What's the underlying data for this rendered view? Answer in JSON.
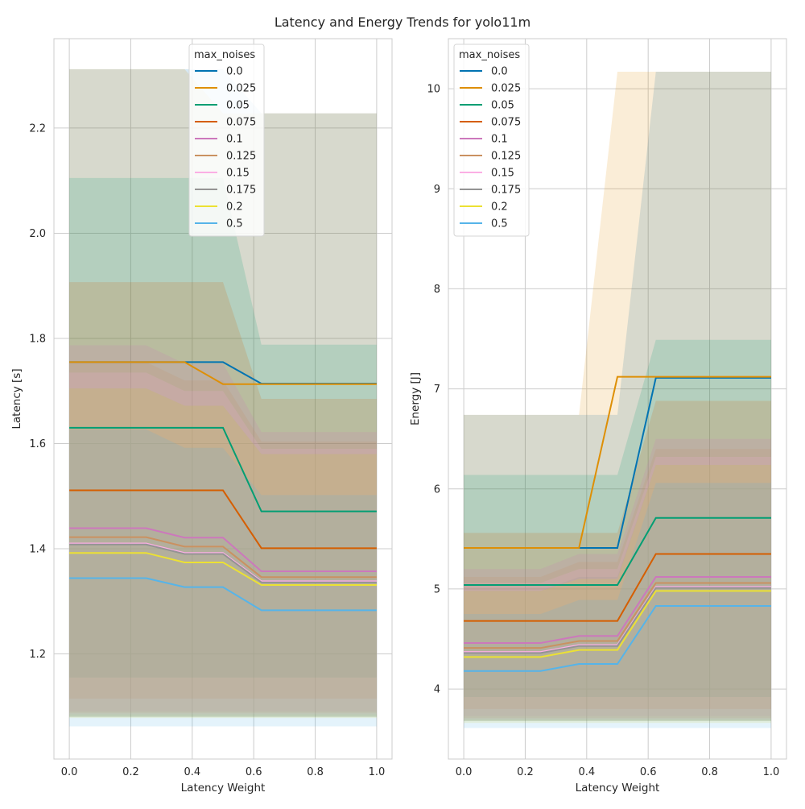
{
  "figure_title": "Latency and Energy Trends for yolo11m",
  "legend_title": "max_noises",
  "series_styles": [
    {
      "name": "0.0",
      "color": "#0173b2"
    },
    {
      "name": "0.025",
      "color": "#de8f05"
    },
    {
      "name": "0.05",
      "color": "#029e73"
    },
    {
      "name": "0.075",
      "color": "#d55e00"
    },
    {
      "name": "0.1",
      "color": "#cc78bc"
    },
    {
      "name": "0.125",
      "color": "#ca9161"
    },
    {
      "name": "0.15",
      "color": "#fbafe4"
    },
    {
      "name": "0.175",
      "color": "#949494"
    },
    {
      "name": "0.2",
      "color": "#ece133"
    },
    {
      "name": "0.5",
      "color": "#56b4e9"
    }
  ],
  "chart_data": [
    {
      "type": "line",
      "title": "",
      "xlabel": "Latency Weight",
      "ylabel": "Latency [s]",
      "xlim": [
        -0.05,
        1.05
      ],
      "ylim": [
        1.0,
        2.37
      ],
      "xticks": [
        "0.0",
        "0.2",
        "0.4",
        "0.6",
        "0.8",
        "1.0"
      ],
      "yticks": [
        "1.2",
        "1.4",
        "1.6",
        "1.8",
        "2.0",
        "2.2"
      ],
      "grid": true,
      "legend": "upper center",
      "x": [
        0.0,
        0.125,
        0.25,
        0.375,
        0.5,
        0.625,
        0.75,
        0.875,
        1.0
      ],
      "series": [
        {
          "name": "0.0",
          "values": [
            1.755,
            1.755,
            1.755,
            1.755,
            1.755,
            1.714,
            1.714,
            1.714,
            1.714
          ],
          "lower": [
            1.08,
            1.08,
            1.08,
            1.08,
            1.08,
            1.08,
            1.08,
            1.08,
            1.08
          ],
          "upper": [
            2.312,
            2.312,
            2.312,
            2.312,
            2.312,
            2.228,
            2.228,
            2.228,
            2.228
          ]
        },
        {
          "name": "0.025",
          "values": [
            1.755,
            1.755,
            1.755,
            1.755,
            1.713,
            1.713,
            1.713,
            1.713,
            1.713
          ],
          "lower": [
            1.08,
            1.08,
            1.08,
            1.08,
            1.08,
            1.08,
            1.08,
            1.08,
            1.08
          ],
          "upper": [
            2.312,
            2.312,
            2.312,
            2.312,
            2.228,
            2.228,
            2.228,
            2.228,
            2.228
          ]
        },
        {
          "name": "0.05",
          "values": [
            1.63,
            1.63,
            1.63,
            1.63,
            1.63,
            1.471,
            1.471,
            1.471,
            1.471
          ],
          "lower": [
            1.155,
            1.155,
            1.155,
            1.155,
            1.155,
            1.155,
            1.155,
            1.155,
            1.155
          ],
          "upper": [
            2.105,
            2.105,
            2.105,
            2.105,
            2.105,
            1.788,
            1.788,
            1.788,
            1.788
          ]
        },
        {
          "name": "0.075",
          "values": [
            1.511,
            1.511,
            1.511,
            1.511,
            1.511,
            1.401,
            1.401,
            1.401,
            1.401
          ],
          "lower": [
            1.115,
            1.115,
            1.115,
            1.115,
            1.115,
            1.115,
            1.115,
            1.115,
            1.115
          ],
          "upper": [
            1.907,
            1.907,
            1.907,
            1.907,
            1.907,
            1.685,
            1.685,
            1.685,
            1.685
          ]
        },
        {
          "name": "0.1",
          "values": [
            1.439,
            1.439,
            1.439,
            1.421,
            1.421,
            1.357,
            1.357,
            1.357,
            1.357
          ],
          "lower": [
            1.09,
            1.09,
            1.09,
            1.09,
            1.09,
            1.09,
            1.09,
            1.09,
            1.09
          ],
          "upper": [
            1.787,
            1.787,
            1.787,
            1.752,
            1.752,
            1.622,
            1.622,
            1.622,
            1.622
          ]
        },
        {
          "name": "0.125",
          "values": [
            1.422,
            1.422,
            1.422,
            1.404,
            1.404,
            1.346,
            1.346,
            1.346,
            1.346
          ],
          "lower": [
            1.088,
            1.088,
            1.088,
            1.088,
            1.088,
            1.088,
            1.088,
            1.088,
            1.088
          ],
          "upper": [
            1.755,
            1.755,
            1.755,
            1.72,
            1.72,
            1.604,
            1.604,
            1.604,
            1.604
          ]
        },
        {
          "name": "0.15",
          "values": [
            1.41,
            1.41,
            1.41,
            1.392,
            1.392,
            1.338,
            1.338,
            1.338,
            1.338
          ],
          "lower": [
            1.085,
            1.085,
            1.085,
            1.085,
            1.085,
            1.085,
            1.085,
            1.085,
            1.085
          ],
          "upper": [
            1.735,
            1.735,
            1.735,
            1.7,
            1.7,
            1.59,
            1.59,
            1.59,
            1.59
          ]
        },
        {
          "name": "0.175",
          "values": [
            1.408,
            1.408,
            1.408,
            1.39,
            1.39,
            1.336,
            1.336,
            1.336,
            1.336
          ],
          "lower": [
            1.082,
            1.082,
            1.082,
            1.082,
            1.082,
            1.082,
            1.082,
            1.082,
            1.082
          ],
          "upper": [
            1.705,
            1.705,
            1.705,
            1.672,
            1.672,
            1.58,
            1.58,
            1.58,
            1.58
          ]
        },
        {
          "name": "0.2",
          "values": [
            1.392,
            1.392,
            1.392,
            1.374,
            1.374,
            1.331,
            1.331,
            1.331,
            1.331
          ],
          "lower": [
            1.078,
            1.078,
            1.078,
            1.078,
            1.078,
            1.078,
            1.078,
            1.078,
            1.078
          ],
          "upper": [
            1.705,
            1.705,
            1.705,
            1.672,
            1.672,
            1.58,
            1.58,
            1.58,
            1.58
          ]
        },
        {
          "name": "0.5",
          "values": [
            1.344,
            1.344,
            1.344,
            1.327,
            1.327,
            1.283,
            1.283,
            1.283,
            1.283
          ],
          "lower": [
            1.062,
            1.062,
            1.062,
            1.062,
            1.062,
            1.062,
            1.062,
            1.062,
            1.062
          ],
          "upper": [
            1.627,
            1.627,
            1.627,
            1.592,
            1.592,
            1.502,
            1.502,
            1.502,
            1.502
          ]
        }
      ]
    },
    {
      "type": "line",
      "title": "",
      "xlabel": "Latency Weight",
      "ylabel": "Energy [J]",
      "xlim": [
        -0.05,
        1.05
      ],
      "ylim": [
        3.3,
        10.5
      ],
      "xticks": [
        "0.0",
        "0.2",
        "0.4",
        "0.6",
        "0.8",
        "1.0"
      ],
      "yticks": [
        "4",
        "5",
        "6",
        "7",
        "8",
        "9",
        "10"
      ],
      "grid": true,
      "legend": "upper left",
      "x": [
        0.0,
        0.125,
        0.25,
        0.375,
        0.5,
        0.625,
        0.75,
        0.875,
        1.0
      ],
      "series": [
        {
          "name": "0.0",
          "values": [
            5.41,
            5.41,
            5.41,
            5.41,
            5.41,
            7.11,
            7.11,
            7.11,
            7.11
          ],
          "lower": [
            3.68,
            3.68,
            3.68,
            3.68,
            3.68,
            3.68,
            3.68,
            3.68,
            3.68
          ],
          "upper": [
            6.74,
            6.74,
            6.74,
            6.74,
            6.74,
            10.17,
            10.17,
            10.17,
            10.17
          ]
        },
        {
          "name": "0.025",
          "values": [
            5.41,
            5.41,
            5.41,
            5.41,
            7.12,
            7.12,
            7.12,
            7.12,
            7.12
          ],
          "lower": [
            3.68,
            3.68,
            3.68,
            3.68,
            3.68,
            3.68,
            3.68,
            3.68,
            3.68
          ],
          "upper": [
            6.74,
            6.74,
            6.74,
            6.74,
            10.17,
            10.17,
            10.17,
            10.17,
            10.17
          ]
        },
        {
          "name": "0.05",
          "values": [
            5.04,
            5.04,
            5.04,
            5.04,
            5.04,
            5.71,
            5.71,
            5.71,
            5.71
          ],
          "lower": [
            3.92,
            3.92,
            3.92,
            3.92,
            3.92,
            3.92,
            3.92,
            3.92,
            3.92
          ],
          "upper": [
            6.14,
            6.14,
            6.14,
            6.14,
            6.14,
            7.49,
            7.49,
            7.49,
            7.49
          ]
        },
        {
          "name": "0.075",
          "values": [
            4.68,
            4.68,
            4.68,
            4.68,
            4.68,
            5.35,
            5.35,
            5.35,
            5.35
          ],
          "lower": [
            3.8,
            3.8,
            3.8,
            3.8,
            3.8,
            3.8,
            3.8,
            3.8,
            3.8
          ],
          "upper": [
            5.56,
            5.56,
            5.56,
            5.56,
            5.56,
            6.88,
            6.88,
            6.88,
            6.88
          ]
        },
        {
          "name": "0.1",
          "values": [
            4.46,
            4.46,
            4.46,
            4.53,
            4.53,
            5.12,
            5.12,
            5.12,
            5.12
          ],
          "lower": [
            3.73,
            3.73,
            3.73,
            3.73,
            3.73,
            3.73,
            3.73,
            3.73,
            3.73
          ],
          "upper": [
            5.2,
            5.2,
            5.2,
            5.35,
            5.35,
            6.5,
            6.5,
            6.5,
            6.5
          ]
        },
        {
          "name": "0.125",
          "values": [
            4.41,
            4.41,
            4.41,
            4.48,
            4.48,
            5.06,
            5.06,
            5.06,
            5.06
          ],
          "lower": [
            3.71,
            3.71,
            3.71,
            3.71,
            3.71,
            3.71,
            3.71,
            3.71,
            3.71
          ],
          "upper": [
            5.12,
            5.12,
            5.12,
            5.27,
            5.27,
            6.4,
            6.4,
            6.4,
            6.4
          ]
        },
        {
          "name": "0.15",
          "values": [
            4.37,
            4.37,
            4.37,
            4.44,
            4.44,
            5.02,
            5.02,
            5.02,
            5.02
          ],
          "lower": [
            3.7,
            3.7,
            3.7,
            3.7,
            3.7,
            3.7,
            3.7,
            3.7,
            3.7
          ],
          "upper": [
            5.06,
            5.06,
            5.06,
            5.2,
            5.2,
            6.32,
            6.32,
            6.32,
            6.32
          ]
        },
        {
          "name": "0.175",
          "values": [
            4.36,
            4.36,
            4.36,
            4.43,
            4.43,
            5.01,
            5.01,
            5.01,
            5.01
          ],
          "lower": [
            3.69,
            3.69,
            3.69,
            3.69,
            3.69,
            3.69,
            3.69,
            3.69,
            3.69
          ],
          "upper": [
            4.98,
            4.98,
            4.98,
            5.12,
            5.12,
            6.24,
            6.24,
            6.24,
            6.24
          ]
        },
        {
          "name": "0.2",
          "values": [
            4.32,
            4.32,
            4.32,
            4.39,
            4.39,
            4.98,
            4.98,
            4.98,
            4.98
          ],
          "lower": [
            3.66,
            3.66,
            3.66,
            3.66,
            3.66,
            3.66,
            3.66,
            3.66,
            3.66
          ],
          "upper": [
            4.98,
            4.98,
            4.98,
            5.1,
            5.1,
            6.24,
            6.24,
            6.24,
            6.24
          ]
        },
        {
          "name": "0.5",
          "values": [
            4.18,
            4.18,
            4.18,
            4.25,
            4.25,
            4.83,
            4.83,
            4.83,
            4.83
          ],
          "lower": [
            3.61,
            3.61,
            3.61,
            3.61,
            3.61,
            3.61,
            3.61,
            3.61,
            3.61
          ],
          "upper": [
            4.75,
            4.75,
            4.75,
            4.89,
            4.89,
            6.06,
            6.06,
            6.06,
            6.06
          ]
        }
      ]
    }
  ]
}
